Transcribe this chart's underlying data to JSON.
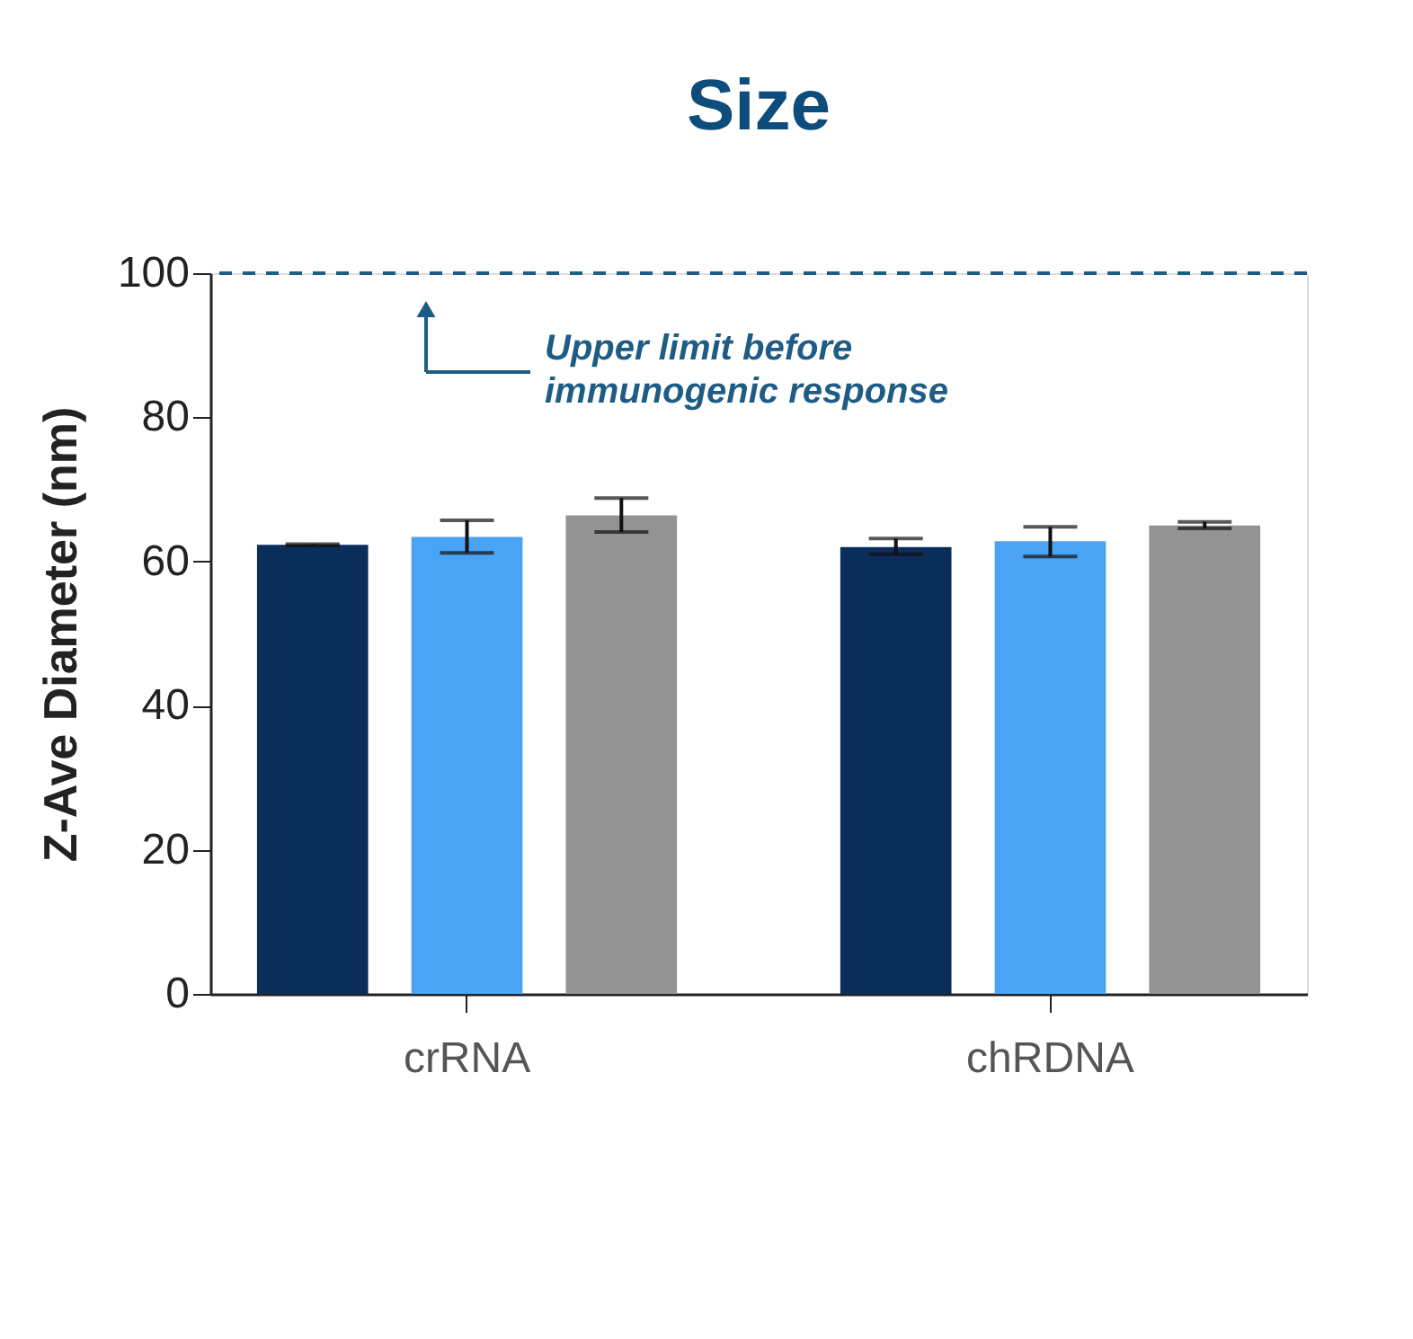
{
  "chart_data": {
    "type": "bar",
    "title": "Size",
    "ylabel": "Z-Ave Diameter (nm)",
    "categories": [
      "crRNA",
      "chRDNA"
    ],
    "series": [
      {
        "color": "#0b2d5a",
        "values": [
          62.3,
          62.0
        ],
        "errors": [
          [
            62.2,
            62.4
          ],
          [
            61.0,
            63.2
          ]
        ]
      },
      {
        "color": "#4aa3f5",
        "values": [
          63.4,
          62.8
        ],
        "errors": [
          [
            61.2,
            65.7
          ],
          [
            60.7,
            64.8
          ]
        ]
      },
      {
        "color": "#939393",
        "values": [
          66.4,
          65.0
        ],
        "errors": [
          [
            64.1,
            68.8
          ],
          [
            64.6,
            65.5
          ]
        ]
      }
    ],
    "ylim": [
      0,
      100
    ],
    "yticks": [
      0,
      20,
      40,
      60,
      80,
      100
    ],
    "grid": false,
    "ref_lines": [
      {
        "axis": "y",
        "value": 100,
        "color": "#1f5c85",
        "line_style": "dashed"
      }
    ],
    "annotations": [
      "Upper limit before\nimmunogenic response"
    ]
  }
}
